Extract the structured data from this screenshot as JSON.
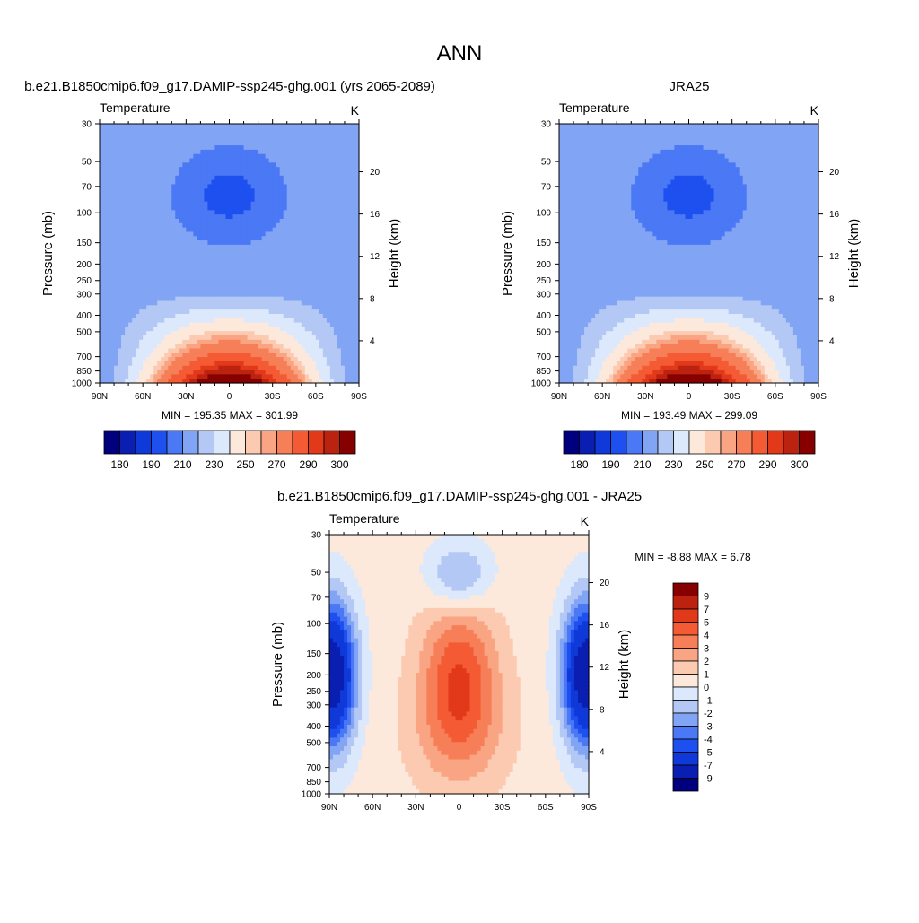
{
  "figure": {
    "title": "ANN"
  },
  "panels": [
    {
      "case_title": "b.e21.B1850cmip6.f09_g17.DAMIP-ssp245-ghg.001 (yrs 2065-2089)",
      "left_title": "Temperature",
      "units": "K",
      "stats": "MIN = 195.35  MAX = 301.99",
      "ylabel_left": "Pressure (mb)",
      "ylabel_right": "Height (km)"
    },
    {
      "case_title": "JRA25",
      "left_title": "Temperature",
      "units": "K",
      "stats": "MIN = 193.49  MAX = 299.09",
      "ylabel_left": "Pressure (mb)",
      "ylabel_right": "Height (km)"
    },
    {
      "case_title": "b.e21.B1850cmip6.f09_g17.DAMIP-ssp245-ghg.001 - JRA25",
      "left_title": "Temperature",
      "units": "K",
      "stats": "MIN =  -8.88  MAX =   6.78",
      "ylabel_left": "Pressure (mb)",
      "ylabel_right": "Height (km)"
    }
  ],
  "chart_data": [
    {
      "type": "heatmap",
      "title": "b.e21.B1850cmip6.f09_g17.DAMIP-ssp245-ghg.001 (yrs 2065-2089)",
      "variable": "Temperature",
      "units": "K",
      "x_tick_labels": [
        "90N",
        "60N",
        "30N",
        "0",
        "30S",
        "60S",
        "90S"
      ],
      "x_tick_values": [
        90,
        60,
        30,
        0,
        -30,
        -60,
        -90
      ],
      "y_tick_labels": [
        "30",
        "50",
        "70",
        "100",
        "150",
        "200",
        "250",
        "300",
        "400",
        "500",
        "700",
        "850",
        "1000"
      ],
      "y_tick_values": [
        30,
        50,
        70,
        100,
        150,
        200,
        250,
        300,
        400,
        500,
        700,
        850,
        1000
      ],
      "yscale": "log",
      "ylim": [
        1000,
        30
      ],
      "xlabel": "",
      "ylabel": "Pressure (mb)",
      "ylabel_right": "Height (km)",
      "height_tick_values": [
        4,
        8,
        12,
        16,
        20
      ],
      "min": 195.35,
      "max": 301.99,
      "colorbar_labels": [
        "180",
        "190",
        "210",
        "230",
        "250",
        "270",
        "290",
        "300"
      ],
      "colorbar_levels": [
        180,
        185,
        190,
        200,
        210,
        220,
        230,
        240,
        250,
        255,
        260,
        270,
        280,
        285,
        290,
        295,
        300
      ]
    },
    {
      "type": "heatmap",
      "title": "JRA25",
      "variable": "Temperature",
      "units": "K",
      "x_tick_labels": [
        "90N",
        "60N",
        "30N",
        "0",
        "30S",
        "60S",
        "90S"
      ],
      "x_tick_values": [
        90,
        60,
        30,
        0,
        -30,
        -60,
        -90
      ],
      "y_tick_labels": [
        "30",
        "50",
        "70",
        "100",
        "150",
        "200",
        "250",
        "300",
        "400",
        "500",
        "700",
        "850",
        "1000"
      ],
      "y_tick_values": [
        30,
        50,
        70,
        100,
        150,
        200,
        250,
        300,
        400,
        500,
        700,
        850,
        1000
      ],
      "yscale": "log",
      "ylim": [
        1000,
        30
      ],
      "xlabel": "",
      "ylabel": "Pressure (mb)",
      "ylabel_right": "Height (km)",
      "height_tick_values": [
        4,
        8,
        12,
        16,
        20
      ],
      "min": 193.49,
      "max": 299.09,
      "colorbar_labels": [
        "180",
        "190",
        "210",
        "230",
        "250",
        "270",
        "290",
        "300"
      ],
      "colorbar_levels": [
        180,
        185,
        190,
        200,
        210,
        220,
        230,
        240,
        250,
        255,
        260,
        270,
        280,
        285,
        290,
        295,
        300
      ]
    },
    {
      "type": "heatmap",
      "title": "b.e21.B1850cmip6.f09_g17.DAMIP-ssp245-ghg.001 - JRA25",
      "variable": "Temperature",
      "units": "K",
      "x_tick_labels": [
        "90N",
        "60N",
        "30N",
        "0",
        "30S",
        "60S",
        "90S"
      ],
      "x_tick_values": [
        90,
        60,
        30,
        0,
        -30,
        -60,
        -90
      ],
      "y_tick_labels": [
        "30",
        "50",
        "70",
        "100",
        "150",
        "200",
        "250",
        "300",
        "400",
        "500",
        "700",
        "850",
        "1000"
      ],
      "y_tick_values": [
        30,
        50,
        70,
        100,
        150,
        200,
        250,
        300,
        400,
        500,
        700,
        850,
        1000
      ],
      "yscale": "log",
      "ylim": [
        1000,
        30
      ],
      "xlabel": "",
      "ylabel": "Pressure (mb)",
      "ylabel_right": "Height (km)",
      "height_tick_values": [
        4,
        8,
        12,
        16,
        20
      ],
      "min": -8.88,
      "max": 6.78,
      "colorbar_labels": [
        "9",
        "7",
        "5",
        "4",
        "3",
        "2",
        "1",
        "0",
        "-1",
        "-2",
        "-3",
        "-4",
        "-5",
        "-7",
        "-9"
      ]
    }
  ],
  "colors": {
    "abs_palette": [
      "#00007f",
      "#0a1fb1",
      "#0f39d8",
      "#1e50f0",
      "#4b78f5",
      "#82a4f5",
      "#b4c8f5",
      "#dce8fb",
      "#fde9dc",
      "#fccab0",
      "#f9a483",
      "#f67f58",
      "#f45b34",
      "#e2391a",
      "#bb2310",
      "#870000"
    ],
    "diff_palette": [
      "#870000",
      "#bb2310",
      "#e2391a",
      "#f45b34",
      "#f67f58",
      "#f9a483",
      "#fccab0",
      "#fde9dc",
      "#dce8fb",
      "#b4c8f5",
      "#82a4f5",
      "#4b78f5",
      "#1e50f0",
      "#0f39d8",
      "#0a1fb1",
      "#00007f"
    ]
  }
}
